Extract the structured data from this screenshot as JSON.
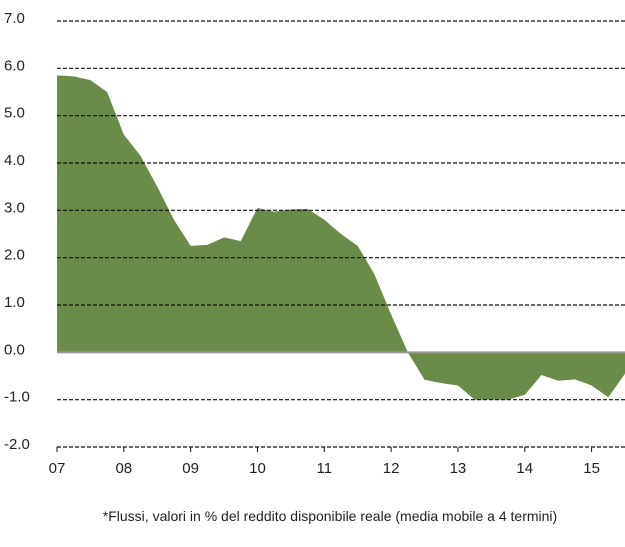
{
  "chart_data": {
    "type": "area",
    "color": "#6b8c48",
    "x": [
      7,
      7.25,
      7.5,
      7.75,
      8,
      8.25,
      8.5,
      8.75,
      9,
      9.25,
      9.5,
      9.75,
      10,
      10.25,
      10.5,
      10.75,
      11,
      11.25,
      11.5,
      11.75,
      12,
      12.25,
      12.5,
      12.75,
      13,
      13.25,
      13.5,
      13.75,
      14,
      14.25,
      14.5,
      14.75,
      15,
      15.25,
      15.5
    ],
    "values": [
      5.85,
      5.83,
      5.75,
      5.5,
      4.6,
      4.15,
      3.5,
      2.8,
      2.25,
      2.27,
      2.43,
      2.35,
      3.05,
      2.97,
      3.02,
      3.03,
      2.8,
      2.5,
      2.25,
      1.65,
      0.8,
      0.0,
      -0.58,
      -0.65,
      -0.7,
      -1.0,
      -1.0,
      -1.0,
      -0.9,
      -0.48,
      -0.6,
      -0.57,
      -0.7,
      -0.95,
      -0.45
    ],
    "xlim": [
      7,
      15.5
    ],
    "xticks": [
      {
        "value": 7,
        "label": "07"
      },
      {
        "value": 8,
        "label": "08"
      },
      {
        "value": 9,
        "label": "09"
      },
      10,
      11,
      12,
      13,
      14,
      15
    ],
    "ylim": [
      -2,
      7
    ],
    "yticks": [
      {
        "value": 7,
        "label": "7.0"
      },
      {
        "value": 6,
        "label": "6.0"
      },
      {
        "value": 5,
        "label": "5.0"
      },
      {
        "value": 4,
        "label": "4.0"
      },
      {
        "value": 3,
        "label": "3.0"
      },
      {
        "value": 2,
        "label": "2.0"
      },
      {
        "value": 1,
        "label": "1.0"
      },
      {
        "value": 0,
        "label": "0.0"
      },
      {
        "value": -1,
        "label": "-1.0"
      },
      {
        "value": -2,
        "label": "-2.0"
      }
    ],
    "grid": true,
    "note": "*Flussi, valori in % del reddito disponibile reale (media mobile a 4 termini)"
  }
}
